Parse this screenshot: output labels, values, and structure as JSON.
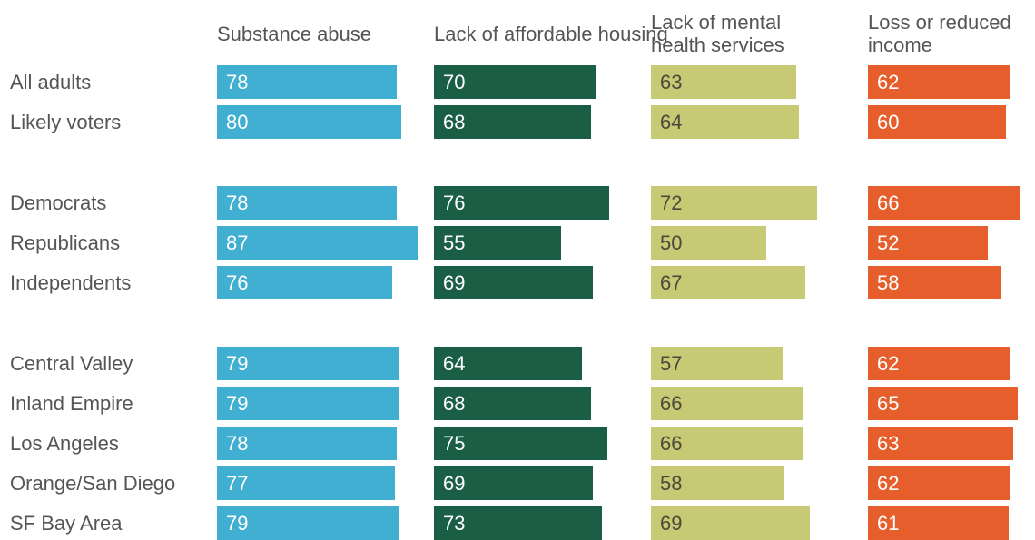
{
  "chart_data": {
    "type": "bar",
    "orientation": "horizontal",
    "layout": "small-multiples",
    "series": [
      {
        "name": "Substance abuse",
        "color": "#41afd1",
        "text_color": "#ffffff",
        "values": [
          78,
          80,
          78,
          87,
          76,
          79,
          79,
          78,
          77,
          79
        ]
      },
      {
        "name": "Lack of affordable housing",
        "color": "#1a5e46",
        "text_color": "#ffffff",
        "values": [
          70,
          68,
          76,
          55,
          69,
          64,
          68,
          75,
          69,
          73
        ]
      },
      {
        "name": "Lack of mental\nhealth services",
        "color": "#c8c974",
        "text_color": "#4a4a3a",
        "values": [
          63,
          64,
          72,
          50,
          67,
          57,
          66,
          66,
          58,
          69
        ]
      },
      {
        "name": "Loss or reduced\nincome",
        "color": "#e55e2b",
        "text_color": "#ffffff",
        "values": [
          62,
          60,
          66,
          52,
          58,
          62,
          65,
          63,
          62,
          61
        ]
      }
    ],
    "categories": [
      "All adults",
      "Likely voters",
      "Democrats",
      "Republicans",
      "Independents",
      "Central Valley",
      "Inland Empire",
      "Los Angeles",
      "Orange/San Diego",
      "SF Bay Area"
    ],
    "groups": [
      [
        0,
        1
      ],
      [
        2,
        3,
        4
      ],
      [
        5,
        6,
        7,
        8,
        9
      ]
    ],
    "title": "",
    "xlabel": "",
    "ylabel": "",
    "xlim": [
      0,
      100
    ],
    "grid": false,
    "legend": "none"
  }
}
